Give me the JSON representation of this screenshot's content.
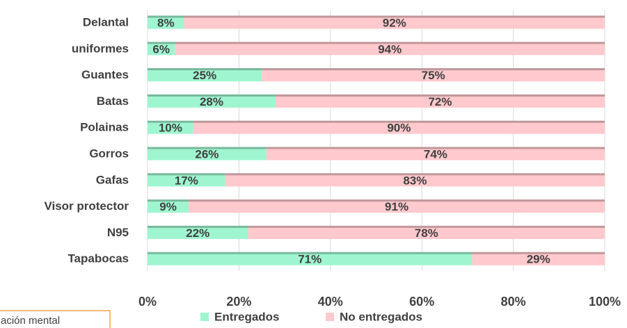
{
  "chart_data": {
    "type": "stacked_barh",
    "categories": [
      "Delantal",
      "uniformes",
      "Guantes",
      "Batas",
      "Polainas",
      "Gorros",
      "Gafas",
      "Visor protector",
      "N95",
      "Tapabocas"
    ],
    "series": [
      {
        "name": "Entregados",
        "color": "#9ff5d0",
        "values": [
          8,
          6,
          25,
          28,
          10,
          26,
          17,
          9,
          22,
          71
        ],
        "value_labels": [
          "8%",
          "6%",
          "25%",
          "28%",
          "10%",
          "26%",
          "17%",
          "9%",
          "22%",
          "71%"
        ]
      },
      {
        "name": "No entregados",
        "color": "#ffc9cd",
        "values": [
          92,
          94,
          75,
          72,
          90,
          74,
          83,
          91,
          78,
          29
        ],
        "value_labels": [
          "92%",
          "94%",
          "75%",
          "72%",
          "90%",
          "74%",
          "83%",
          "91%",
          "78%",
          "29%"
        ]
      }
    ],
    "xlim": [
      0,
      100
    ],
    "xticks": [
      {
        "value": 0,
        "label": "0%"
      },
      {
        "value": 20,
        "label": "20%"
      },
      {
        "value": 40,
        "label": "40%"
      },
      {
        "value": 60,
        "label": "60%"
      },
      {
        "value": 80,
        "label": "80%"
      },
      {
        "value": 100,
        "label": "100%"
      }
    ],
    "grid": true,
    "legend": "bottom",
    "annotation": "ación mental"
  }
}
